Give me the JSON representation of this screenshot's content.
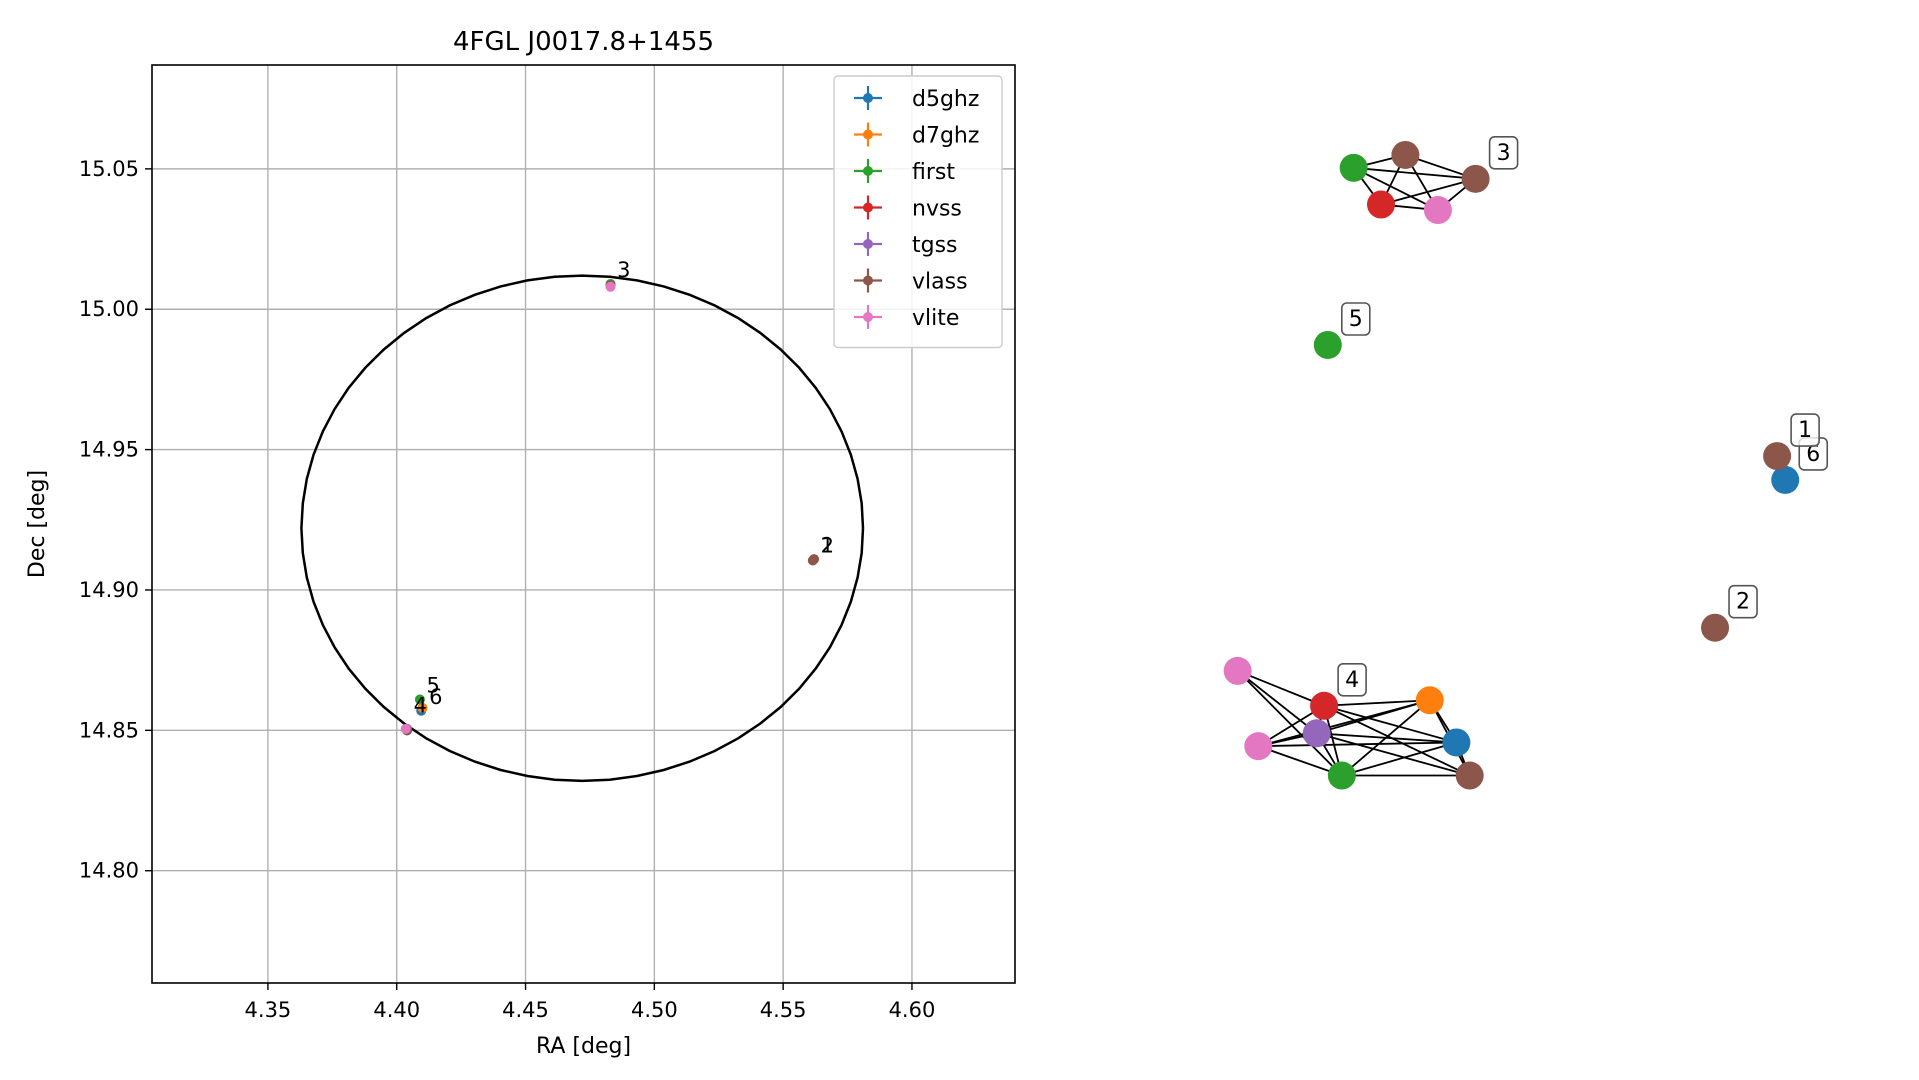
{
  "chart_data": [
    {
      "type": "scatter",
      "title": "4FGL J0017.8+1455",
      "xlabel": "RA [deg]",
      "ylabel": "Dec [deg]",
      "xlim": [
        4.305,
        4.64
      ],
      "ylim": [
        14.76,
        15.087
      ],
      "xticks": [
        4.35,
        4.4,
        4.45,
        4.5,
        4.55,
        4.6
      ],
      "xtick_labels": [
        "4.35",
        "4.40",
        "4.45",
        "4.50",
        "4.55",
        "4.60"
      ],
      "yticks": [
        14.8,
        14.85,
        14.9,
        14.95,
        15.0,
        15.05
      ],
      "ytick_labels": [
        "14.80",
        "14.85",
        "14.90",
        "14.95",
        "15.00",
        "15.05"
      ],
      "grid": true,
      "legend_position": "top-right",
      "series": [
        {
          "name": "d5ghz",
          "color": "#1f77b4",
          "points": [
            {
              "ra": 4.4095,
              "dec": 14.857
            }
          ]
        },
        {
          "name": "d7ghz",
          "color": "#ff7f0e",
          "points": [
            {
              "ra": 4.41,
              "dec": 14.858
            }
          ]
        },
        {
          "name": "first",
          "color": "#2ca02c",
          "points": [
            {
              "ra": 4.409,
              "dec": 14.861
            },
            {
              "ra": 4.404,
              "dec": 14.85
            },
            {
              "ra": 4.483,
              "dec": 15.009
            }
          ]
        },
        {
          "name": "nvss",
          "color": "#d62728",
          "points": [
            {
              "ra": 4.404,
              "dec": 14.8505
            },
            {
              "ra": 4.483,
              "dec": 15.0085
            }
          ]
        },
        {
          "name": "tgss",
          "color": "#9467bd",
          "points": [
            {
              "ra": 4.404,
              "dec": 14.8505
            }
          ]
        },
        {
          "name": "vlass",
          "color": "#8c564b",
          "points": [
            {
              "ra": 4.562,
              "dec": 14.911
            },
            {
              "ra": 4.5615,
              "dec": 14.9105
            },
            {
              "ra": 4.483,
              "dec": 15.0085
            },
            {
              "ra": 4.404,
              "dec": 14.85
            }
          ]
        },
        {
          "name": "vlite",
          "color": "#e377c2",
          "points": [
            {
              "ra": 4.4035,
              "dec": 14.8505
            },
            {
              "ra": 4.483,
              "dec": 15.008
            }
          ]
        }
      ],
      "annotations": [
        {
          "text": "1",
          "ra": 4.563,
          "dec": 14.912
        },
        {
          "text": "2",
          "ra": 4.563,
          "dec": 14.912
        },
        {
          "text": "3",
          "ra": 4.484,
          "dec": 15.01
        },
        {
          "text": "4",
          "ra": 4.405,
          "dec": 14.855
        },
        {
          "text": "5",
          "ra": 4.41,
          "dec": 14.862
        },
        {
          "text": "6",
          "ra": 4.411,
          "dec": 14.858
        }
      ],
      "ellipse": {
        "center_ra": 4.472,
        "center_dec": 14.922,
        "semi_ra": 0.109,
        "semi_dec": 0.09,
        "color": "#000000"
      }
    },
    {
      "type": "network",
      "nodes": [
        {
          "id": "a1",
          "color": "#2ca02c",
          "fx": 0.235,
          "fy": 0.112
        },
        {
          "id": "a2",
          "color": "#8c564b",
          "fx": 0.305,
          "fy": 0.098
        },
        {
          "id": "a3",
          "color": "#8c564b",
          "fx": 0.4,
          "fy": 0.124
        },
        {
          "id": "a4",
          "color": "#d62728",
          "fx": 0.272,
          "fy": 0.152
        },
        {
          "id": "a5",
          "color": "#e377c2",
          "fx": 0.349,
          "fy": 0.158
        },
        {
          "id": "n5",
          "color": "#2ca02c",
          "fx": 0.2,
          "fy": 0.305
        },
        {
          "id": "n6",
          "color": "#1f77b4",
          "fx": 0.819,
          "fy": 0.452
        },
        {
          "id": "n1",
          "color": "#8c564b",
          "fx": 0.808,
          "fy": 0.426
        },
        {
          "id": "n2",
          "color": "#8c564b",
          "fx": 0.724,
          "fy": 0.613
        },
        {
          "id": "b1",
          "color": "#e377c2",
          "fx": 0.078,
          "fy": 0.66
        },
        {
          "id": "b2",
          "color": "#ff7f0e",
          "fx": 0.338,
          "fy": 0.692
        },
        {
          "id": "b3",
          "color": "#d62728",
          "fx": 0.195,
          "fy": 0.698
        },
        {
          "id": "b4",
          "color": "#9467bd",
          "fx": 0.185,
          "fy": 0.728
        },
        {
          "id": "b5",
          "color": "#1f77b4",
          "fx": 0.374,
          "fy": 0.738
        },
        {
          "id": "b6",
          "color": "#e377c2",
          "fx": 0.106,
          "fy": 0.742
        },
        {
          "id": "b7",
          "color": "#2ca02c",
          "fx": 0.219,
          "fy": 0.774
        },
        {
          "id": "b8",
          "color": "#8c564b",
          "fx": 0.392,
          "fy": 0.774
        }
      ],
      "edges": [
        [
          "a1",
          "a2"
        ],
        [
          "a1",
          "a3"
        ],
        [
          "a1",
          "a4"
        ],
        [
          "a1",
          "a5"
        ],
        [
          "a2",
          "a3"
        ],
        [
          "a2",
          "a4"
        ],
        [
          "a2",
          "a5"
        ],
        [
          "a3",
          "a4"
        ],
        [
          "a3",
          "a5"
        ],
        [
          "a4",
          "a5"
        ],
        [
          "b1",
          "b3"
        ],
        [
          "b1",
          "b4"
        ],
        [
          "b1",
          "b7"
        ],
        [
          "b2",
          "b3"
        ],
        [
          "b2",
          "b4"
        ],
        [
          "b2",
          "b5"
        ],
        [
          "b2",
          "b6"
        ],
        [
          "b2",
          "b7"
        ],
        [
          "b2",
          "b8"
        ],
        [
          "b3",
          "b4"
        ],
        [
          "b3",
          "b5"
        ],
        [
          "b3",
          "b6"
        ],
        [
          "b3",
          "b7"
        ],
        [
          "b3",
          "b8"
        ],
        [
          "b4",
          "b5"
        ],
        [
          "b4",
          "b6"
        ],
        [
          "b4",
          "b7"
        ],
        [
          "b4",
          "b8"
        ],
        [
          "b5",
          "b6"
        ],
        [
          "b5",
          "b7"
        ],
        [
          "b5",
          "b8"
        ],
        [
          "b6",
          "b7"
        ],
        [
          "b7",
          "b8"
        ]
      ],
      "labels": [
        {
          "text": "3",
          "node": "a3"
        },
        {
          "text": "5",
          "node": "n5"
        },
        {
          "text": "6",
          "node": "n6"
        },
        {
          "text": "1",
          "node": "n1"
        },
        {
          "text": "2",
          "node": "n2"
        },
        {
          "text": "4",
          "node": "b3"
        }
      ]
    }
  ]
}
